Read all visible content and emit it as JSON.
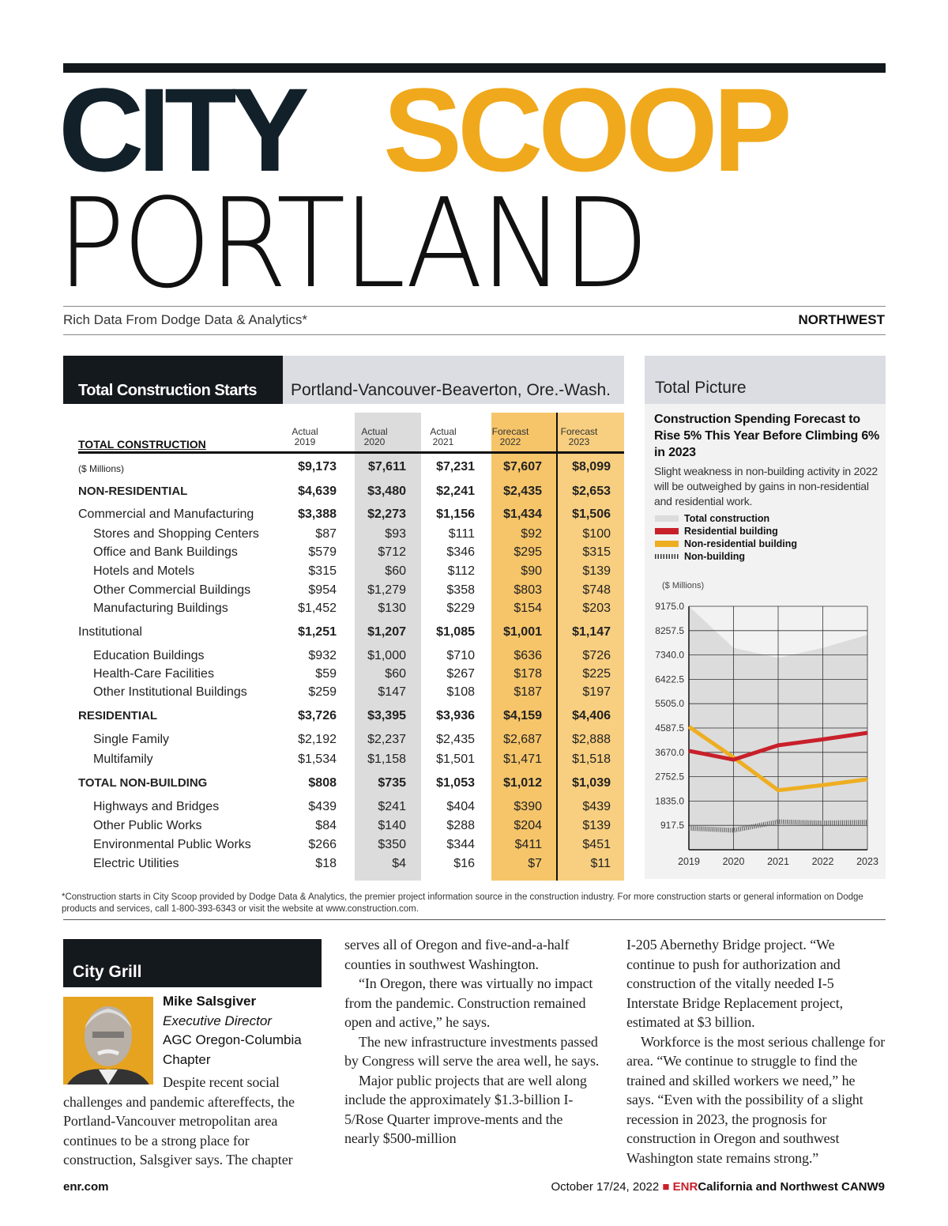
{
  "masthead": {
    "city": "CITY",
    "scoop": "SCOOP",
    "portland": "PORTLAND",
    "subtitle": "Rich Data From Dodge Data & Analytics*",
    "region": "NORTHWEST"
  },
  "table": {
    "title": "Total Construction Starts",
    "area": "Portland-Vancouver-Beaverton, Ore.-Wash.",
    "columns": [
      {
        "type": "Actual",
        "year": "2019"
      },
      {
        "type": "Actual",
        "year": "2020"
      },
      {
        "type": "Actual",
        "year": "2021"
      },
      {
        "type": "Forecast",
        "year": "2022"
      },
      {
        "type": "Forecast",
        "year": "2023"
      }
    ],
    "header_label": "TOTAL CONSTRUCTION",
    "rows": [
      {
        "label": "($ Millions)",
        "style": "units",
        "values": [
          "$9,173",
          "$7,611",
          "$7,231",
          "$7,607",
          "$8,099"
        ]
      },
      {
        "label": "NON-RESIDENTIAL",
        "style": "cap",
        "values": [
          "$4,639",
          "$3,480",
          "$2,241",
          "$2,435",
          "$2,653"
        ]
      },
      {
        "label": "Commercial and Manufacturing",
        "style": "group",
        "values": [
          "$3,388",
          "$2,273",
          "$1,156",
          "$1,434",
          "$1,506"
        ]
      },
      {
        "label": "Stores and Shopping Centers",
        "style": "sub",
        "values": [
          "$87",
          "$93",
          "$111",
          "$92",
          "$100"
        ]
      },
      {
        "label": "Office and Bank Buildings",
        "style": "sub",
        "values": [
          "$579",
          "$712",
          "$346",
          "$295",
          "$315"
        ]
      },
      {
        "label": "Hotels and Motels",
        "style": "sub",
        "values": [
          "$315",
          "$60",
          "$112",
          "$90",
          "$139"
        ]
      },
      {
        "label": "Other Commercial Buildings",
        "style": "sub",
        "values": [
          "$954",
          "$1,279",
          "$358",
          "$803",
          "$748"
        ]
      },
      {
        "label": "Manufacturing Buildings",
        "style": "sub",
        "values": [
          "$1,452",
          "$130",
          "$229",
          "$154",
          "$203"
        ]
      },
      {
        "label": "Institutional",
        "style": "group",
        "values": [
          "$1,251",
          "$1,207",
          "$1,085",
          "$1,001",
          "$1,147"
        ]
      },
      {
        "label": "Education Buildings",
        "style": "sub",
        "values": [
          "$932",
          "$1,000",
          "$710",
          "$636",
          "$726"
        ]
      },
      {
        "label": "Health-Care Facilities",
        "style": "sub",
        "values": [
          "$59",
          "$60",
          "$267",
          "$178",
          "$225"
        ]
      },
      {
        "label": "Other Institutional Buildings",
        "style": "sub",
        "values": [
          "$259",
          "$147",
          "$108",
          "$187",
          "$197"
        ]
      },
      {
        "label": "RESIDENTIAL",
        "style": "cap",
        "values": [
          "$3,726",
          "$3,395",
          "$3,936",
          "$4,159",
          "$4,406"
        ]
      },
      {
        "label": "Single Family",
        "style": "sub",
        "values": [
          "$2,192",
          "$2,237",
          "$2,435",
          "$2,687",
          "$2,888"
        ]
      },
      {
        "label": "Multifamily",
        "style": "sub",
        "values": [
          "$1,534",
          "$1,158",
          "$1,501",
          "$1,471",
          "$1,518"
        ]
      },
      {
        "label": "TOTAL NON-BUILDING",
        "style": "cap",
        "values": [
          "$808",
          "$735",
          "$1,053",
          "$1,012",
          "$1,039"
        ]
      },
      {
        "label": "Highways and Bridges",
        "style": "sub",
        "values": [
          "$439",
          "$241",
          "$404",
          "$390",
          "$439"
        ]
      },
      {
        "label": "Other Public Works",
        "style": "sub",
        "values": [
          "$84",
          "$140",
          "$288",
          "$204",
          "$139"
        ]
      },
      {
        "label": "Environmental Public Works",
        "style": "sub",
        "values": [
          "$266",
          "$350",
          "$344",
          "$411",
          "$451"
        ]
      },
      {
        "label": "Electric Utilities",
        "style": "sub",
        "values": [
          "$18",
          "$4",
          "$16",
          "$7",
          "$11"
        ]
      }
    ]
  },
  "panel": {
    "heading": "Total Picture",
    "title": "Construction Spending Forecast to Rise 5% This Year Before Climbing 6% in 2023",
    "description": "Slight weakness in non-building activity in 2022 will be outweighed by gains in non-residential and residential work."
  },
  "chart_data": {
    "type": "line",
    "ylabel": "($ Millions)",
    "x": [
      "2019",
      "2020",
      "2021",
      "2022",
      "2023"
    ],
    "yticks": [
      "9175.0",
      "8257.5",
      "7340.0",
      "6422.5",
      "5505.0",
      "4587.5",
      "3670.0",
      "2752.5",
      "1835.0",
      "917.5"
    ],
    "ylim": [
      0,
      9175
    ],
    "grid": true,
    "legend": "top",
    "series": [
      {
        "name": "Total construction",
        "kind": "area",
        "color": "#dcdcdc",
        "values": [
          9173,
          7611,
          7231,
          7607,
          8099
        ]
      },
      {
        "name": "Residential building",
        "kind": "line",
        "color": "#c8202a",
        "values": [
          3726,
          3395,
          3936,
          4159,
          4406
        ]
      },
      {
        "name": "Non-residential building",
        "kind": "line",
        "color": "#eeae22",
        "values": [
          4639,
          3480,
          2241,
          2435,
          2653
        ]
      },
      {
        "name": "Non-building",
        "kind": "hatched",
        "color": "#555555",
        "values": [
          808,
          735,
          1053,
          1012,
          1039
        ]
      }
    ]
  },
  "footnote": "*Construction starts in City Scoop provided by Dodge Data & Analytics, the premier project information source in the construction industry. For more construction starts or general information on Dodge products and services, call 1-800-393-6343 or visit the website at www.construction.com.",
  "article": {
    "section": "City Grill",
    "name": "Mike Salsgiver",
    "role": "Executive Director",
    "org": "AGC Oregon-Columbia Chapter",
    "col1": "Despite recent social challenges and pandemic aftereffects, the Portland-Vancouver metropolitan area continues to be a strong place for construction, Salsgiver says. The chapter",
    "col2": [
      "serves all of Oregon and five-and-a-half counties in southwest Washington.",
      "“In Oregon, there was virtually no impact from the pandemic. Construction remained open and active,” he says.",
      "The new infrastructure investments passed by Congress will serve the area well, he says.",
      "Major public projects that are well along include the approximately $1.3-billion I-5/Rose Quarter improve-ments and the nearly $500-million"
    ],
    "col3": [
      "I-205 Abernethy Bridge project. “We continue to push for authorization and construction of the vitally needed I-5 Interstate Bridge Replacement project, estimated at $3 billion.",
      "Workforce is the most serious challenge for area. “We continue to struggle to find the trained and skilled workers we need,” he says. “Even with the possibility of a slight recession in 2023, the prognosis for construction in Oregon and southwest Washington state remains strong.”"
    ]
  },
  "footer": {
    "site": "enr.com",
    "date": "October 17/24, 2022",
    "brand": "ENR",
    "edition": "California and Northwest CANW9"
  },
  "colors": {
    "accent": "#f0a91c",
    "dark": "#14191d",
    "red": "#c8202a"
  }
}
